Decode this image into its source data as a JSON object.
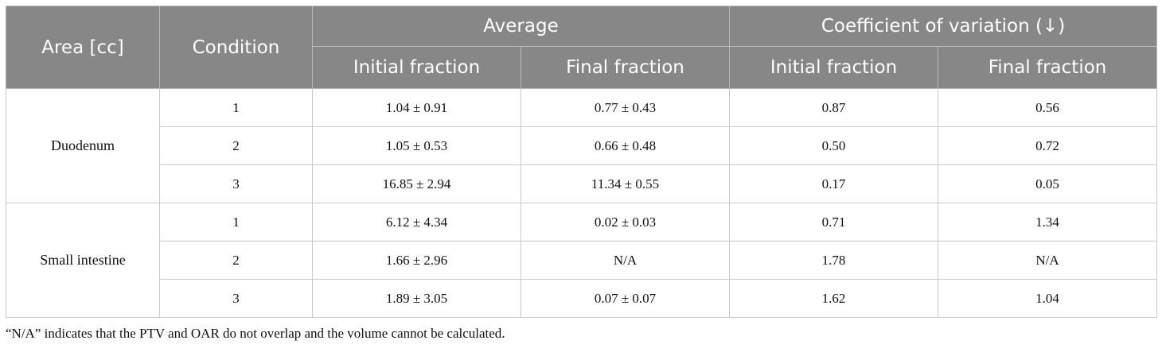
{
  "header": {
    "area": "Area [cc]",
    "condition": "Condition",
    "average": "Average",
    "cov": "Coefficient of variation (↓)",
    "initial_fraction": "Initial fraction",
    "final_fraction": "Final fraction"
  },
  "groups": [
    {
      "area": "Duodenum",
      "rows": [
        {
          "condition": "1",
          "avg_initial": "1.04 ± 0.91",
          "avg_final": "0.77 ± 0.43",
          "cov_initial": "0.87",
          "cov_final": "0.56"
        },
        {
          "condition": "2",
          "avg_initial": "1.05 ± 0.53",
          "avg_final": "0.66 ± 0.48",
          "cov_initial": "0.50",
          "cov_final": "0.72"
        },
        {
          "condition": "3",
          "avg_initial": "16.85 ± 2.94",
          "avg_final": "11.34 ± 0.55",
          "cov_initial": "0.17",
          "cov_final": "0.05"
        }
      ]
    },
    {
      "area": "Small intestine",
      "rows": [
        {
          "condition": "1",
          "avg_initial": "6.12 ± 4.34",
          "avg_final": "0.02 ± 0.03",
          "cov_initial": "0.71",
          "cov_final": "1.34"
        },
        {
          "condition": "2",
          "avg_initial": "1.66 ± 2.96",
          "avg_final": "N/A",
          "cov_initial": "1.78",
          "cov_final": "N/A"
        },
        {
          "condition": "3",
          "avg_initial": "1.89 ± 3.05",
          "avg_final": "0.07 ± 0.07",
          "cov_initial": "1.62",
          "cov_final": "1.04"
        }
      ]
    }
  ],
  "footnote": "“N/A” indicates that the PTV and OAR do not overlap and the volume cannot be calculated."
}
